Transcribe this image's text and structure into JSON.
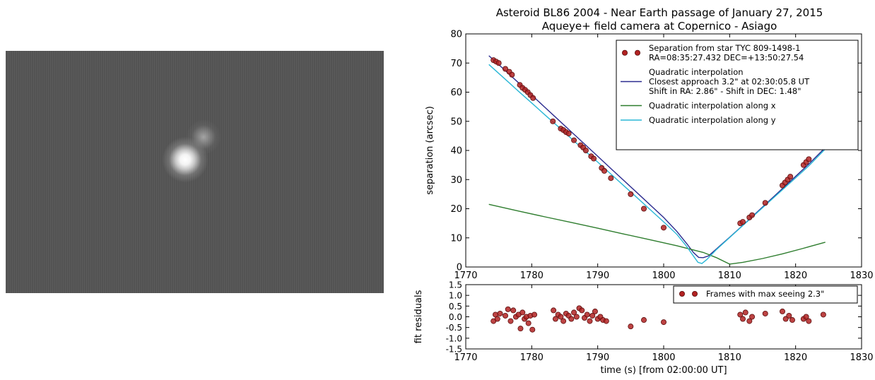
{
  "image_panel": {
    "background": "#555555"
  },
  "chart_data": [
    {
      "type": "line",
      "title": "Asteroid BL86 2004 - Near Earth passage of January 27, 2015",
      "subtitle": "Aqueye+ field camera at Copernico - Asiago",
      "xlabel": "",
      "ylabel": "separation (arcsec)",
      "xlim": [
        1770,
        1830
      ],
      "ylim": [
        0,
        80
      ],
      "xticks": [
        1770,
        1780,
        1790,
        1800,
        1810,
        1820,
        1830
      ],
      "yticks": [
        0,
        10,
        20,
        30,
        40,
        50,
        60,
        70,
        80
      ],
      "grid": false,
      "legend_position": "top-right",
      "legend": [
        {
          "lines": [
            "Separation from star TYC 809-1498-1",
            "RA=08:35:27.432 DEC=+13:50:27.54"
          ],
          "marker": "circle",
          "color": "#b22222"
        },
        {
          "lines": [
            "Quadratic interpolation",
            "Closest approach 3.2\" at 02:30:05.8 UT",
            "Shift in RA: 2.86\" - Shift in DEC: 1.48\""
          ],
          "marker": "line",
          "color": "#2b2b8f"
        },
        {
          "lines": [
            "Quadratic interpolation along x"
          ],
          "marker": "line",
          "color": "#2e7d2e"
        },
        {
          "lines": [
            "Quadratic interpolation along y"
          ],
          "marker": "line",
          "color": "#2ab7d6"
        }
      ],
      "series": [
        {
          "name": "Separation from star TYC 809-1498-1",
          "kind": "scatter",
          "color": "#b22222",
          "x": [
            1774.2,
            1774.6,
            1775.0,
            1776.0,
            1776.6,
            1777.0,
            1778.2,
            1778.6,
            1779.0,
            1779.4,
            1779.8,
            1780.2,
            1783.2,
            1784.4,
            1784.8,
            1785.2,
            1785.6,
            1786.4,
            1787.4,
            1787.8,
            1788.2,
            1789.0,
            1789.4,
            1790.6,
            1791.0,
            1792.0,
            1795.0,
            1797.0,
            1800.0,
            1811.6,
            1812.0,
            1813.0,
            1813.4,
            1815.4,
            1818.0,
            1818.4,
            1818.8,
            1819.2,
            1821.2,
            1821.6,
            1822.0,
            1824.2
          ],
          "y": [
            71.0,
            70.5,
            70.0,
            68.0,
            67.0,
            66.0,
            62.5,
            61.5,
            60.8,
            60.0,
            59.0,
            58.0,
            50.0,
            47.5,
            47.0,
            46.3,
            45.8,
            43.5,
            41.8,
            41.0,
            40.0,
            38.0,
            37.2,
            34.0,
            33.0,
            30.5,
            25.0,
            20.0,
            13.5,
            15.0,
            15.5,
            17.0,
            17.8,
            22.0,
            28.0,
            29.0,
            30.0,
            31.0,
            35.0,
            36.0,
            37.0,
            42.0
          ]
        },
        {
          "name": "Quadratic interpolation",
          "kind": "line",
          "color": "#2b2b8f",
          "x": [
            1773.5,
            1776,
            1778,
            1780,
            1782,
            1784,
            1786,
            1788,
            1790,
            1792,
            1794,
            1796,
            1798,
            1800,
            1802,
            1803.5,
            1804.5,
            1805.3,
            1806,
            1806.8,
            1808,
            1810,
            1812,
            1814,
            1816,
            1818,
            1820,
            1822,
            1824.5
          ],
          "y": [
            72.5,
            67.4,
            63.2,
            59.0,
            54.8,
            50.6,
            46.4,
            42.2,
            38.0,
            33.8,
            29.6,
            25.4,
            21.2,
            17.0,
            12.2,
            8.0,
            5.0,
            3.3,
            3.2,
            3.8,
            6.2,
            10.2,
            14.3,
            18.5,
            22.7,
            26.9,
            31.1,
            35.3,
            41.0
          ]
        },
        {
          "name": "Quadratic interpolation along x",
          "kind": "line",
          "color": "#2e7d2e",
          "x": [
            1773.5,
            1778,
            1782,
            1786,
            1790,
            1794,
            1798,
            1802,
            1806,
            1808,
            1810,
            1812,
            1815,
            1818,
            1821,
            1824.5
          ],
          "y": [
            21.5,
            19.2,
            17.2,
            15.3,
            13.3,
            11.3,
            9.3,
            7.3,
            5.0,
            3.2,
            1.0,
            1.6,
            2.9,
            4.5,
            6.3,
            8.5
          ]
        },
        {
          "name": "Quadratic interpolation along y",
          "kind": "line",
          "color": "#2ab7d6",
          "x": [
            1773.5,
            1776,
            1778,
            1780,
            1782,
            1784,
            1786,
            1788,
            1790,
            1792,
            1794,
            1796,
            1798,
            1800,
            1802,
            1803.5,
            1804.5,
            1805.2,
            1805.8,
            1806.5,
            1808,
            1810,
            1812,
            1814,
            1816,
            1818,
            1820,
            1822,
            1824.5
          ],
          "y": [
            69.5,
            64.4,
            60.3,
            56.3,
            52.2,
            48.2,
            44.1,
            40.0,
            36.0,
            31.9,
            27.8,
            23.7,
            19.6,
            15.5,
            11.2,
            7.0,
            3.8,
            1.6,
            1.2,
            2.5,
            6.0,
            10.1,
            14.2,
            18.3,
            22.4,
            26.5,
            30.6,
            34.7,
            40.5
          ]
        }
      ]
    },
    {
      "type": "scatter",
      "title": "",
      "xlabel": "time (s) [from 02:00:00 UT]",
      "ylabel": "fit residuals",
      "xlim": [
        1770,
        1830
      ],
      "ylim": [
        -1.5,
        1.5
      ],
      "xticks": [
        1770,
        1780,
        1790,
        1800,
        1810,
        1820,
        1830
      ],
      "yticks": [
        -1.5,
        -1.0,
        -0.5,
        0.0,
        0.5,
        1.0,
        1.5
      ],
      "grid": false,
      "legend_position": "top-right",
      "legend": [
        {
          "lines": [
            "Frames with max seeing 2.3\""
          ],
          "marker": "circle",
          "color": "#b22222"
        }
      ],
      "series": [
        {
          "name": "Frames with max seeing 2.3\"",
          "kind": "scatter",
          "color": "#b22222",
          "x": [
            1774.2,
            1774.5,
            1774.8,
            1775.2,
            1776.0,
            1776.4,
            1776.8,
            1777.2,
            1777.6,
            1778.0,
            1778.3,
            1778.6,
            1778.9,
            1779.2,
            1779.5,
            1779.8,
            1780.1,
            1780.4,
            1783.3,
            1783.6,
            1784.0,
            1784.4,
            1784.8,
            1785.2,
            1785.6,
            1786.0,
            1786.4,
            1786.8,
            1787.2,
            1787.6,
            1788.0,
            1788.4,
            1788.8,
            1789.2,
            1789.6,
            1790.0,
            1790.4,
            1790.8,
            1791.3,
            1795.0,
            1797.0,
            1800.0,
            1811.6,
            1812.0,
            1812.4,
            1813.0,
            1813.4,
            1815.4,
            1818.0,
            1818.5,
            1819.0,
            1819.5,
            1821.2,
            1821.6,
            1822.0,
            1824.2
          ],
          "y": [
            -0.2,
            0.1,
            -0.1,
            0.15,
            0.05,
            0.35,
            -0.2,
            0.3,
            0.0,
            0.1,
            -0.55,
            0.2,
            -0.1,
            0.0,
            -0.3,
            0.05,
            -0.6,
            0.1,
            0.3,
            -0.1,
            0.1,
            0.0,
            -0.2,
            0.15,
            0.05,
            -0.1,
            0.2,
            0.0,
            0.4,
            0.3,
            -0.05,
            0.1,
            -0.2,
            0.05,
            0.25,
            -0.1,
            0.0,
            -0.15,
            -0.2,
            -0.45,
            -0.15,
            -0.25,
            0.1,
            -0.1,
            0.2,
            -0.2,
            0.0,
            0.15,
            0.25,
            -0.1,
            0.05,
            -0.15,
            -0.1,
            0.0,
            -0.2,
            0.1
          ]
        }
      ]
    }
  ]
}
